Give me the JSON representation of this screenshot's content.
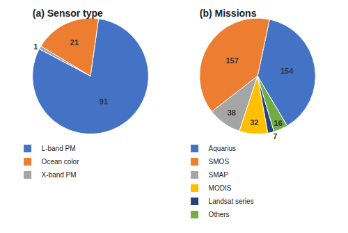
{
  "chart_data": [
    {
      "type": "pie",
      "title": "(a) Sensor type",
      "categories": [
        "L-band PM",
        "Ocean color",
        "X-band PM"
      ],
      "values": [
        91,
        21,
        1
      ],
      "colors": [
        "#4472C4",
        "#ED7D31",
        "#A5A5A5"
      ],
      "data_labels": true,
      "legend": "bottom"
    },
    {
      "type": "pie",
      "title": "(b) Missions",
      "categories": [
        "Aquarius",
        "SMOS",
        "SMAP",
        "MODIS",
        "Landsat series",
        "Others"
      ],
      "values": [
        154,
        157,
        38,
        32,
        7,
        16
      ],
      "colors": [
        "#4472C4",
        "#ED7D31",
        "#A5A5A5",
        "#FFC000",
        "#264478",
        "#70AD47"
      ],
      "data_labels": true,
      "legend": "bottom"
    }
  ]
}
